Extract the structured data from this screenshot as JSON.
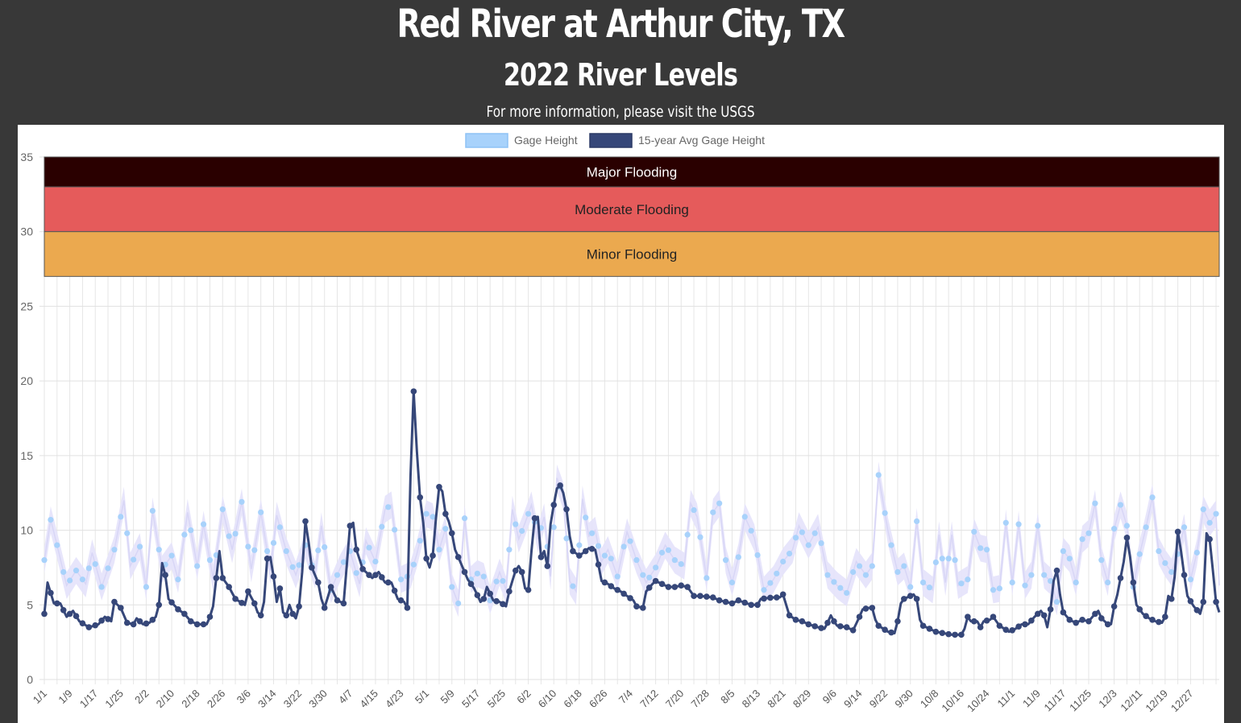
{
  "header": {
    "title": "Red River at Arthur City, TX",
    "subtitle": "2022 River Levels",
    "info_text": "For more information, please visit the ",
    "info_link": "USGS"
  },
  "legend": [
    {
      "label": "Gage Height",
      "color": "#a8d2fb"
    },
    {
      "label": "15-year Avg Gage Height",
      "color": "#364779"
    }
  ],
  "flood_bands": [
    {
      "label": "Major Flooding",
      "from": 33,
      "to": 35,
      "color": "#2a0000",
      "text_color": "#ffffff"
    },
    {
      "label": "Moderate Flooding",
      "from": 30,
      "to": 33,
      "color": "#e55b5b",
      "text_color": "#222222"
    },
    {
      "label": "Minor Flooding",
      "from": 27,
      "to": 30,
      "color": "#eba94f",
      "text_color": "#222222"
    }
  ],
  "chart_data": {
    "type": "line",
    "title": "2022 River Levels",
    "xlabel": "",
    "ylabel": "",
    "ylim": [
      0,
      35
    ],
    "yticks": [
      0,
      5,
      10,
      15,
      20,
      25,
      30,
      35
    ],
    "grid": true,
    "legend_position": "top",
    "x_tick_labels": [
      "1/1",
      "1/9",
      "1/17",
      "1/25",
      "2/2",
      "2/10",
      "2/18",
      "2/26",
      "3/6",
      "3/14",
      "3/22",
      "3/30",
      "4/7",
      "4/15",
      "4/23",
      "5/1",
      "5/9",
      "5/17",
      "5/25",
      "6/2",
      "6/10",
      "6/18",
      "6/26",
      "7/4",
      "7/12",
      "7/20",
      "7/28",
      "8/5",
      "8/13",
      "8/21",
      "8/29",
      "9/6",
      "9/14",
      "9/22",
      "9/30",
      "10/8",
      "10/16",
      "10/24",
      "11/1",
      "11/9",
      "11/17",
      "11/25",
      "12/3",
      "12/11",
      "12/19",
      "12/27"
    ],
    "gage_height_keypoints": [
      [
        0,
        8.0
      ],
      [
        2,
        10.7
      ],
      [
        4,
        9.0
      ],
      [
        7,
        6.3
      ],
      [
        10,
        7.3
      ],
      [
        13,
        6.4
      ],
      [
        15,
        8.5
      ],
      [
        18,
        6.2
      ],
      [
        22,
        8.7
      ],
      [
        25,
        12.0
      ],
      [
        27,
        7.6
      ],
      [
        30,
        8.9
      ],
      [
        32,
        6.2
      ],
      [
        34,
        11.3
      ],
      [
        37,
        7.4
      ],
      [
        40,
        8.3
      ],
      [
        42,
        6.7
      ],
      [
        45,
        11.2
      ],
      [
        48,
        7.6
      ],
      [
        50,
        10.4
      ],
      [
        53,
        6.8
      ],
      [
        56,
        11.4
      ],
      [
        59,
        8.7
      ],
      [
        62,
        11.9
      ],
      [
        65,
        7.4
      ],
      [
        68,
        11.2
      ],
      [
        71,
        7.3
      ],
      [
        73,
        11.0
      ],
      [
        76,
        8.6
      ],
      [
        79,
        7.0
      ],
      [
        82,
        9.0
      ],
      [
        85,
        7.0
      ],
      [
        87,
        10.3
      ],
      [
        90,
        6.0
      ],
      [
        93,
        7.5
      ],
      [
        96,
        8.6
      ],
      [
        99,
        6.4
      ],
      [
        101,
        9.3
      ],
      [
        104,
        7.9
      ],
      [
        107,
        11.4
      ],
      [
        109,
        11.7
      ],
      [
        112,
        6.7
      ],
      [
        115,
        7.0
      ],
      [
        117,
        8.4
      ],
      [
        120,
        11.1
      ],
      [
        122,
        10.9
      ],
      [
        124,
        8.7
      ],
      [
        126,
        10.1
      ],
      [
        128,
        6.2
      ],
      [
        130,
        5.1
      ],
      [
        132,
        10.8
      ],
      [
        134,
        6.7
      ],
      [
        136,
        7.1
      ],
      [
        138,
        6.9
      ],
      [
        140,
        5.3
      ],
      [
        143,
        7.2
      ],
      [
        145,
        6.0
      ],
      [
        147,
        11.4
      ],
      [
        149,
        9.4
      ],
      [
        151,
        10.5
      ],
      [
        153,
        11.7
      ],
      [
        155,
        9.4
      ],
      [
        157,
        10.9
      ],
      [
        159,
        6.9
      ],
      [
        161,
        13.5
      ],
      [
        163,
        12.3
      ],
      [
        165,
        6.6
      ],
      [
        167,
        5.9
      ],
      [
        169,
        12.1
      ],
      [
        171,
        9.6
      ],
      [
        173,
        10.0
      ],
      [
        175,
        7.9
      ],
      [
        177,
        8.7
      ],
      [
        180,
        6.9
      ],
      [
        183,
        9.9
      ],
      [
        186,
        8.0
      ],
      [
        189,
        6.5
      ],
      [
        192,
        7.5
      ],
      [
        195,
        9.0
      ],
      [
        198,
        8.0
      ],
      [
        201,
        7.6
      ],
      [
        203,
        11.8
      ],
      [
        205,
        10.9
      ],
      [
        208,
        6.8
      ],
      [
        210,
        11.2
      ],
      [
        212,
        11.8
      ],
      [
        214,
        8.0
      ],
      [
        216,
        6.5
      ],
      [
        218,
        8.2
      ],
      [
        220,
        10.9
      ],
      [
        223,
        9.5
      ],
      [
        226,
        6.0
      ],
      [
        229,
        6.7
      ],
      [
        232,
        7.9
      ],
      [
        235,
        8.7
      ],
      [
        237,
        10.3
      ],
      [
        240,
        9.0
      ],
      [
        243,
        10.2
      ],
      [
        246,
        7.0
      ],
      [
        249,
        6.3
      ],
      [
        252,
        5.8
      ],
      [
        255,
        7.9
      ],
      [
        258,
        7.0
      ],
      [
        260,
        7.6
      ],
      [
        262,
        13.7
      ],
      [
        263,
        12.4
      ],
      [
        265,
        9.9
      ],
      [
        268,
        7.2
      ],
      [
        270,
        7.6
      ],
      [
        272,
        6.2
      ],
      [
        274,
        10.6
      ],
      [
        276,
        6.5
      ],
      [
        279,
        6.0
      ],
      [
        281,
        9.7
      ],
      [
        283,
        6.5
      ],
      [
        285,
        9.7
      ],
      [
        287,
        6.3
      ],
      [
        290,
        6.7
      ],
      [
        292,
        9.9
      ],
      [
        294,
        8.8
      ],
      [
        296,
        8.7
      ],
      [
        298,
        6.0
      ],
      [
        300,
        6.1
      ],
      [
        302,
        10.5
      ],
      [
        304,
        6.5
      ],
      [
        306,
        10.4
      ],
      [
        308,
        6.3
      ],
      [
        310,
        7.0
      ],
      [
        312,
        10.3
      ],
      [
        314,
        7.0
      ],
      [
        316,
        6.6
      ],
      [
        318,
        5.2
      ],
      [
        320,
        8.6
      ],
      [
        322,
        8.1
      ],
      [
        324,
        6.5
      ],
      [
        326,
        9.4
      ],
      [
        328,
        9.8
      ],
      [
        330,
        11.8
      ],
      [
        332,
        8.0
      ],
      [
        334,
        6.5
      ],
      [
        336,
        10.1
      ],
      [
        338,
        11.7
      ],
      [
        340,
        10.3
      ],
      [
        342,
        6.2
      ],
      [
        344,
        8.4
      ],
      [
        346,
        10.2
      ],
      [
        348,
        12.2
      ],
      [
        350,
        8.6
      ],
      [
        352,
        7.8
      ],
      [
        354,
        7.2
      ],
      [
        356,
        8.4
      ],
      [
        358,
        10.2
      ],
      [
        360,
        6.7
      ],
      [
        362,
        8.5
      ],
      [
        364,
        11.4
      ],
      [
        366,
        10.5
      ],
      [
        368,
        11.1
      ],
      [
        369,
        6.3
      ]
    ],
    "avg_gage_height_keypoints": [
      [
        0,
        4.4
      ],
      [
        1,
        6.5
      ],
      [
        2,
        5.8
      ],
      [
        3,
        5.1
      ],
      [
        5,
        5.1
      ],
      [
        7,
        4.2
      ],
      [
        9,
        4.6
      ],
      [
        11,
        3.9
      ],
      [
        14,
        3.5
      ],
      [
        17,
        3.7
      ],
      [
        19,
        4.2
      ],
      [
        21,
        3.9
      ],
      [
        22,
        5.2
      ],
      [
        24,
        4.8
      ],
      [
        26,
        3.8
      ],
      [
        28,
        3.7
      ],
      [
        29,
        4.1
      ],
      [
        31,
        3.7
      ],
      [
        33,
        3.8
      ],
      [
        35,
        4.2
      ],
      [
        36,
        5.0
      ],
      [
        37,
        7.8
      ],
      [
        38,
        7.0
      ],
      [
        39,
        5.4
      ],
      [
        42,
        4.7
      ],
      [
        44,
        4.4
      ],
      [
        46,
        3.9
      ],
      [
        48,
        3.7
      ],
      [
        51,
        3.7
      ],
      [
        52,
        4.2
      ],
      [
        53,
        4.9
      ],
      [
        54,
        6.8
      ],
      [
        55,
        8.6
      ],
      [
        56,
        6.8
      ],
      [
        58,
        6.2
      ],
      [
        60,
        5.4
      ],
      [
        63,
        5.0
      ],
      [
        64,
        5.9
      ],
      [
        66,
        5.1
      ],
      [
        67,
        4.5
      ],
      [
        68,
        4.3
      ],
      [
        69,
        5.2
      ],
      [
        70,
        8.1
      ],
      [
        71,
        8.2
      ],
      [
        72,
        6.9
      ],
      [
        73,
        5.2
      ],
      [
        74,
        6.1
      ],
      [
        75,
        4.5
      ],
      [
        76,
        4.3
      ],
      [
        77,
        5.0
      ],
      [
        78,
        4.4
      ],
      [
        79,
        4.1
      ],
      [
        80,
        4.9
      ],
      [
        81,
        7.2
      ],
      [
        82,
        10.6
      ],
      [
        83,
        9.2
      ],
      [
        84,
        7.5
      ],
      [
        86,
        6.5
      ],
      [
        87,
        5.4
      ],
      [
        88,
        4.8
      ],
      [
        89,
        5.5
      ],
      [
        90,
        6.2
      ],
      [
        92,
        5.3
      ],
      [
        94,
        5.1
      ],
      [
        95,
        7.7
      ],
      [
        96,
        10.3
      ],
      [
        97,
        10.5
      ],
      [
        98,
        8.7
      ],
      [
        100,
        7.4
      ],
      [
        103,
        6.8
      ],
      [
        105,
        7.2
      ],
      [
        107,
        6.5
      ],
      [
        109,
        6.5
      ],
      [
        111,
        5.4
      ],
      [
        113,
        5.2
      ],
      [
        114,
        4.8
      ],
      [
        115,
        13.6
      ],
      [
        116,
        19.3
      ],
      [
        117,
        15.3
      ],
      [
        118,
        12.2
      ],
      [
        119,
        10.5
      ],
      [
        120,
        8.1
      ],
      [
        121,
        7.5
      ],
      [
        122,
        8.3
      ],
      [
        123,
        10.8
      ],
      [
        124,
        12.9
      ],
      [
        125,
        12.6
      ],
      [
        126,
        11.1
      ],
      [
        127,
        10.6
      ],
      [
        128,
        9.8
      ],
      [
        129,
        8.7
      ],
      [
        131,
        7.7
      ],
      [
        133,
        6.7
      ],
      [
        135,
        6.1
      ],
      [
        137,
        5.2
      ],
      [
        138,
        5.4
      ],
      [
        139,
        6.2
      ],
      [
        141,
        5.3
      ],
      [
        143,
        5.2
      ],
      [
        145,
        4.9
      ],
      [
        146,
        5.9
      ],
      [
        148,
        7.3
      ],
      [
        149,
        7.6
      ],
      [
        150,
        7.2
      ],
      [
        151,
        6.1
      ],
      [
        152,
        6.0
      ],
      [
        153,
        8.6
      ],
      [
        154,
        10.8
      ],
      [
        155,
        10.9
      ],
      [
        156,
        8.2
      ],
      [
        157,
        8.6
      ],
      [
        158,
        7.6
      ],
      [
        159,
        10.4
      ],
      [
        160,
        11.7
      ],
      [
        161,
        12.8
      ],
      [
        162,
        13.0
      ],
      [
        163,
        12.5
      ],
      [
        164,
        11.4
      ],
      [
        165,
        9.6
      ],
      [
        166,
        8.6
      ],
      [
        168,
        8.3
      ],
      [
        170,
        8.6
      ],
      [
        171,
        8.8
      ],
      [
        173,
        8.7
      ],
      [
        174,
        7.7
      ],
      [
        175,
        6.6
      ],
      [
        177,
        6.4
      ],
      [
        179,
        6.1
      ],
      [
        181,
        5.9
      ],
      [
        183,
        5.6
      ],
      [
        185,
        5.3
      ],
      [
        186,
        4.9
      ],
      [
        188,
        4.8
      ],
      [
        189,
        5.9
      ],
      [
        191,
        6.4
      ],
      [
        192,
        6.6
      ],
      [
        194,
        6.4
      ],
      [
        196,
        6.2
      ],
      [
        198,
        6.2
      ],
      [
        200,
        6.3
      ],
      [
        202,
        6.2
      ],
      [
        204,
        5.6
      ],
      [
        206,
        5.6
      ],
      [
        210,
        5.5
      ],
      [
        212,
        5.3
      ],
      [
        216,
        5.1
      ],
      [
        218,
        5.3
      ],
      [
        222,
        5.0
      ],
      [
        224,
        5.0
      ],
      [
        225,
        5.4
      ],
      [
        229,
        5.5
      ],
      [
        231,
        5.5
      ],
      [
        232,
        5.7
      ],
      [
        233,
        5.0
      ],
      [
        234,
        4.3
      ],
      [
        236,
        4.0
      ],
      [
        238,
        3.9
      ],
      [
        240,
        3.7
      ],
      [
        243,
        3.5
      ],
      [
        245,
        3.4
      ],
      [
        246,
        3.8
      ],
      [
        247,
        4.3
      ],
      [
        248,
        3.9
      ],
      [
        249,
        3.6
      ],
      [
        252,
        3.5
      ],
      [
        254,
        3.3
      ],
      [
        256,
        4.2
      ],
      [
        257,
        4.7
      ],
      [
        259,
        4.8
      ],
      [
        260,
        4.8
      ],
      [
        261,
        4.0
      ],
      [
        262,
        3.6
      ],
      [
        265,
        3.2
      ],
      [
        267,
        3.1
      ],
      [
        268,
        3.9
      ],
      [
        269,
        5.1
      ],
      [
        270,
        5.4
      ],
      [
        272,
        5.6
      ],
      [
        273,
        5.7
      ],
      [
        274,
        5.4
      ],
      [
        275,
        4.0
      ],
      [
        276,
        3.6
      ],
      [
        280,
        3.2
      ],
      [
        285,
        3.0
      ],
      [
        288,
        3.0
      ],
      [
        289,
        3.4
      ],
      [
        290,
        4.2
      ],
      [
        291,
        3.9
      ],
      [
        293,
        3.9
      ],
      [
        294,
        3.5
      ],
      [
        295,
        3.9
      ],
      [
        297,
        4.0
      ],
      [
        298,
        4.2
      ],
      [
        299,
        3.9
      ],
      [
        300,
        3.6
      ],
      [
        303,
        3.2
      ],
      [
        305,
        3.4
      ],
      [
        307,
        3.7
      ],
      [
        309,
        3.7
      ],
      [
        311,
        4.2
      ],
      [
        313,
        4.6
      ],
      [
        314,
        4.3
      ],
      [
        315,
        3.5
      ],
      [
        316,
        4.7
      ],
      [
        317,
        6.6
      ],
      [
        318,
        7.3
      ],
      [
        319,
        5.7
      ],
      [
        320,
        4.5
      ],
      [
        322,
        4.0
      ],
      [
        324,
        3.8
      ],
      [
        326,
        4.0
      ],
      [
        328,
        3.9
      ],
      [
        330,
        4.4
      ],
      [
        331,
        4.6
      ],
      [
        332,
        4.1
      ],
      [
        334,
        3.7
      ],
      [
        335,
        3.7
      ],
      [
        336,
        4.9
      ],
      [
        337,
        5.7
      ],
      [
        338,
        6.8
      ],
      [
        339,
        7.9
      ],
      [
        340,
        9.5
      ],
      [
        341,
        8.2
      ],
      [
        342,
        6.5
      ],
      [
        343,
        5.0
      ],
      [
        345,
        4.4
      ],
      [
        347,
        4.1
      ],
      [
        349,
        3.9
      ],
      [
        351,
        3.8
      ],
      [
        352,
        4.2
      ],
      [
        353,
        5.6
      ],
      [
        354,
        5.4
      ],
      [
        355,
        6.9
      ],
      [
        356,
        9.9
      ],
      [
        357,
        8.6
      ],
      [
        358,
        7.0
      ],
      [
        359,
        5.6
      ],
      [
        361,
        4.9
      ],
      [
        363,
        4.4
      ],
      [
        364,
        5.2
      ],
      [
        365,
        9.8
      ],
      [
        366,
        9.4
      ],
      [
        367,
        7.3
      ],
      [
        368,
        5.2
      ],
      [
        369,
        4.5
      ],
      [
        371,
        4.1
      ]
    ]
  }
}
